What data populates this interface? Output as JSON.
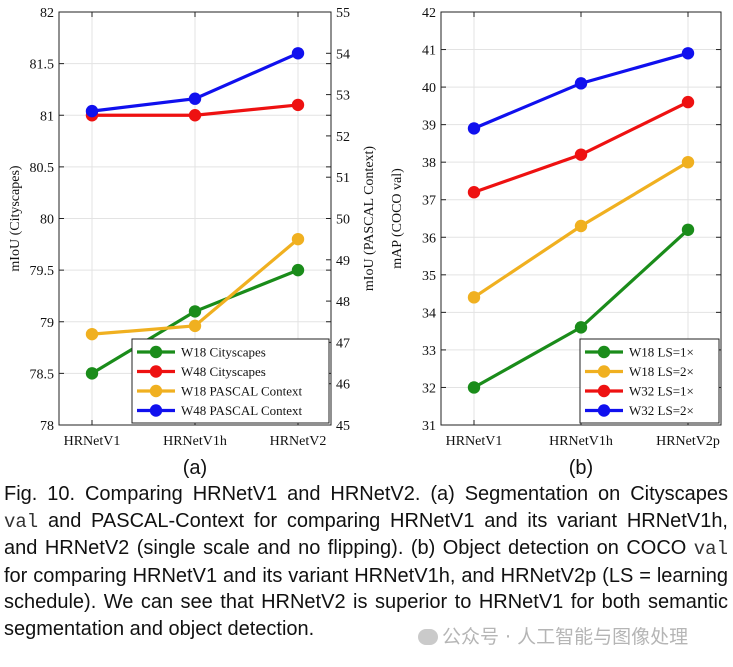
{
  "chart_data": [
    {
      "type": "line",
      "panel_label": "(a)",
      "categories": [
        "HRNetV1",
        "HRNetV1h",
        "HRNetV2"
      ],
      "ylabel_left": "mIoU (Cityscapes)",
      "ylabel_right": "mIoU (PASCAL Context)",
      "ylim_left": [
        78,
        82
      ],
      "yticks_left": [
        78,
        78.5,
        79,
        79.5,
        80,
        80.5,
        81,
        81.5,
        82
      ],
      "ylim_right": [
        45,
        55
      ],
      "yticks_right": [
        45,
        46,
        47,
        48,
        49,
        50,
        51,
        52,
        53,
        54,
        55
      ],
      "legend_position": "bottom-right",
      "series": [
        {
          "name": "W18 Cityscapes",
          "axis": "left",
          "color": "#1a8c1a",
          "values": [
            78.5,
            79.1,
            79.5
          ]
        },
        {
          "name": "W48 Cityscapes",
          "axis": "left",
          "color": "#ee1111",
          "values": [
            81.0,
            81.0,
            81.1
          ]
        },
        {
          "name": "W18 PASCAL Context",
          "axis": "right",
          "color": "#f0b020",
          "values": [
            47.2,
            47.4,
            49.5
          ]
        },
        {
          "name": "W48 PASCAL Context",
          "axis": "right",
          "color": "#1010ee",
          "values": [
            52.6,
            52.9,
            54.0
          ]
        }
      ]
    },
    {
      "type": "line",
      "panel_label": "(b)",
      "categories": [
        "HRNetV1",
        "HRNetV1h",
        "HRNetV2p"
      ],
      "ylabel": "mAP (COCO val)",
      "ylim": [
        31,
        42
      ],
      "yticks": [
        31,
        32,
        33,
        34,
        35,
        36,
        37,
        38,
        39,
        40,
        41,
        42
      ],
      "legend_position": "bottom-right",
      "series": [
        {
          "name": "W18 LS=1×",
          "color": "#1a8c1a",
          "values": [
            32.0,
            33.6,
            36.2
          ]
        },
        {
          "name": "W18 LS=2×",
          "color": "#f0b020",
          "values": [
            34.4,
            36.3,
            38.0
          ]
        },
        {
          "name": "W32 LS=1×",
          "color": "#ee1111",
          "values": [
            37.2,
            38.2,
            39.6
          ]
        },
        {
          "name": "W32 LS=2×",
          "color": "#1010ee",
          "values": [
            38.9,
            40.1,
            40.9
          ]
        }
      ]
    }
  ],
  "caption": {
    "p1": "Fig. 10. Comparing HRNetV1 and HRNetV2. (a) Segmentation on Cityscapes ",
    "val1": "val",
    "p2": " and PASCAL-Context for comparing HRNetV1 and its variant HRNetV1h, and HRNetV2 (single scale and no flipping). (b) Object detection on COCO ",
    "val2": "val",
    "p3": " for comparing HRNetV1 and its variant HRNetV1h, and HRNetV2p (LS = learning schedule). We can see that HRNetV2 is superior to HRNetV1 for both semantic segmentation and object detection."
  },
  "watermark": "公众号 · 人工智能与图像处理"
}
